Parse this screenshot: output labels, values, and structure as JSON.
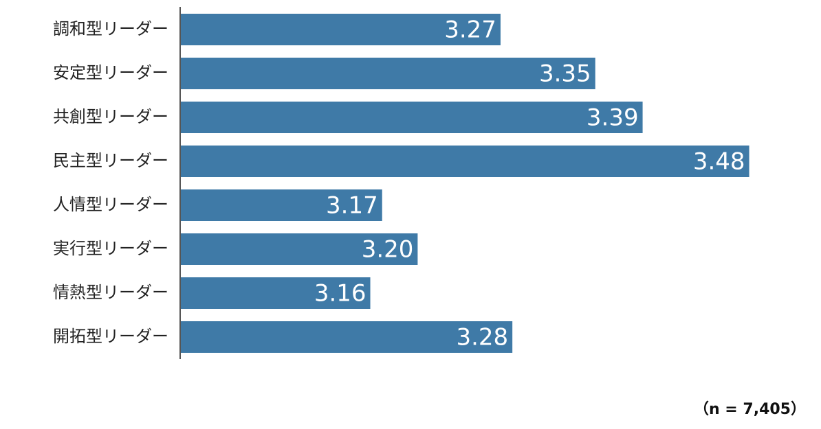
{
  "chart_data": {
    "type": "bar",
    "orientation": "horizontal",
    "categories": [
      "調和型リーダー",
      "安定型リーダー",
      "共創型リーダー",
      "民主型リーダー",
      "人情型リーダー",
      "実行型リーダー",
      "情熱型リーダー",
      "開拓型リーダー"
    ],
    "values": [
      3.27,
      3.35,
      3.39,
      3.48,
      3.17,
      3.2,
      3.16,
      3.28
    ],
    "value_labels": [
      "3.27",
      "3.35",
      "3.39",
      "3.48",
      "3.17",
      "3.20",
      "3.16",
      "3.28"
    ],
    "color": "#3f7aa7",
    "xlim": [
      3.0,
      3.5
    ],
    "note": "（n = 7,405）"
  }
}
